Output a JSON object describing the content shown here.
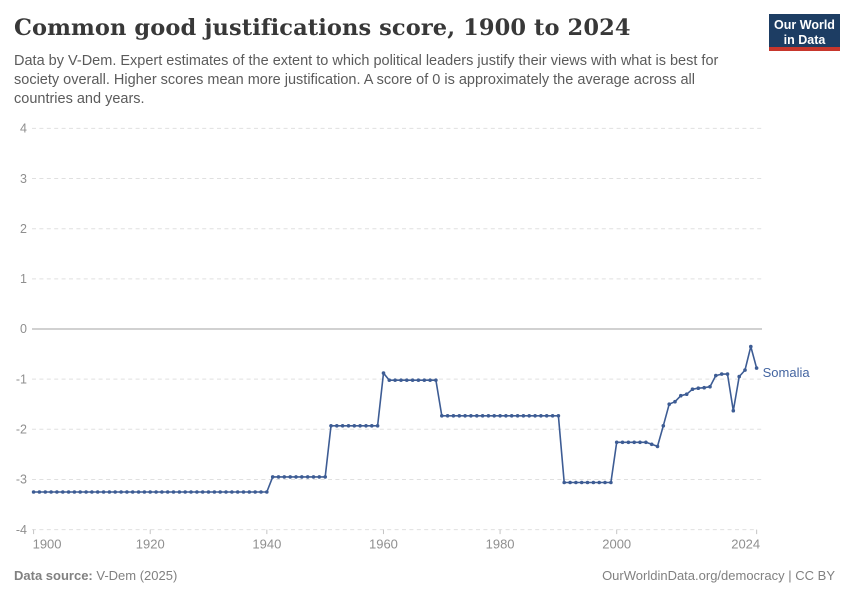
{
  "header": {
    "title": "Common good justifications score, 1900 to 2024",
    "subtitle_lines": [
      "Data by V-Dem. Expert estimates of the extent to which political leaders justify their views with what is best for",
      "society overall. Higher scores mean more justification. A score of 0 is approximately the average across all",
      "countries and years."
    ],
    "logo_lines": [
      "Our World",
      "in Data"
    ]
  },
  "footer": {
    "source_label": "Data source:",
    "source_value": "V-Dem (2025)",
    "url": "OurWorldinData.org/democracy",
    "divider": "|",
    "license": "CC BY"
  },
  "colors": {
    "series_line": "#3d5c94",
    "entity_label": "#4465a1",
    "logo_background": "#1d3d63",
    "logo_stripe": "#c7362c",
    "gridline": "#e0e0e0",
    "zero_line": "#a3a3a3",
    "axis_text": "#8f8f8f"
  },
  "chart_data": {
    "type": "line",
    "title": "Common good justifications score, 1900 to 2024",
    "xlabel": "",
    "ylabel": "",
    "xlim": [
      1900,
      2024
    ],
    "ylim": [
      -4,
      4
    ],
    "yticks": [
      4,
      3,
      2,
      1,
      0,
      -1,
      -2,
      -3,
      -4
    ],
    "xticks": [
      1900,
      1920,
      1940,
      1960,
      1980,
      2000,
      2024
    ],
    "grid": "horizontal dashed, solid line at 0",
    "legend": "end-of-line entity label",
    "entity_label": "Somalia",
    "series": [
      {
        "name": "Somalia",
        "points": [
          [
            1900,
            -3.25
          ],
          [
            1901,
            -3.25
          ],
          [
            1902,
            -3.25
          ],
          [
            1903,
            -3.25
          ],
          [
            1904,
            -3.25
          ],
          [
            1905,
            -3.25
          ],
          [
            1906,
            -3.25
          ],
          [
            1907,
            -3.25
          ],
          [
            1908,
            -3.25
          ],
          [
            1909,
            -3.25
          ],
          [
            1910,
            -3.25
          ],
          [
            1911,
            -3.25
          ],
          [
            1912,
            -3.25
          ],
          [
            1913,
            -3.25
          ],
          [
            1914,
            -3.25
          ],
          [
            1915,
            -3.25
          ],
          [
            1916,
            -3.25
          ],
          [
            1917,
            -3.25
          ],
          [
            1918,
            -3.25
          ],
          [
            1919,
            -3.25
          ],
          [
            1920,
            -3.25
          ],
          [
            1921,
            -3.25
          ],
          [
            1922,
            -3.25
          ],
          [
            1923,
            -3.25
          ],
          [
            1924,
            -3.25
          ],
          [
            1925,
            -3.25
          ],
          [
            1926,
            -3.25
          ],
          [
            1927,
            -3.25
          ],
          [
            1928,
            -3.25
          ],
          [
            1929,
            -3.25
          ],
          [
            1930,
            -3.25
          ],
          [
            1931,
            -3.25
          ],
          [
            1932,
            -3.25
          ],
          [
            1933,
            -3.25
          ],
          [
            1934,
            -3.25
          ],
          [
            1935,
            -3.25
          ],
          [
            1936,
            -3.25
          ],
          [
            1937,
            -3.25
          ],
          [
            1938,
            -3.25
          ],
          [
            1939,
            -3.25
          ],
          [
            1940,
            -3.25
          ],
          [
            1941,
            -2.95
          ],
          [
            1942,
            -2.95
          ],
          [
            1943,
            -2.95
          ],
          [
            1944,
            -2.95
          ],
          [
            1945,
            -2.95
          ],
          [
            1946,
            -2.95
          ],
          [
            1947,
            -2.95
          ],
          [
            1948,
            -2.95
          ],
          [
            1949,
            -2.95
          ],
          [
            1950,
            -2.95
          ],
          [
            1951,
            -1.93
          ],
          [
            1952,
            -1.93
          ],
          [
            1953,
            -1.93
          ],
          [
            1954,
            -1.93
          ],
          [
            1955,
            -1.93
          ],
          [
            1956,
            -1.93
          ],
          [
            1957,
            -1.93
          ],
          [
            1958,
            -1.93
          ],
          [
            1959,
            -1.93
          ],
          [
            1960,
            -0.88
          ],
          [
            1961,
            -1.02
          ],
          [
            1962,
            -1.02
          ],
          [
            1963,
            -1.02
          ],
          [
            1964,
            -1.02
          ],
          [
            1965,
            -1.02
          ],
          [
            1966,
            -1.02
          ],
          [
            1967,
            -1.02
          ],
          [
            1968,
            -1.02
          ],
          [
            1969,
            -1.02
          ],
          [
            1970,
            -1.73
          ],
          [
            1971,
            -1.73
          ],
          [
            1972,
            -1.73
          ],
          [
            1973,
            -1.73
          ],
          [
            1974,
            -1.73
          ],
          [
            1975,
            -1.73
          ],
          [
            1976,
            -1.73
          ],
          [
            1977,
            -1.73
          ],
          [
            1978,
            -1.73
          ],
          [
            1979,
            -1.73
          ],
          [
            1980,
            -1.73
          ],
          [
            1981,
            -1.73
          ],
          [
            1982,
            -1.73
          ],
          [
            1983,
            -1.73
          ],
          [
            1984,
            -1.73
          ],
          [
            1985,
            -1.73
          ],
          [
            1986,
            -1.73
          ],
          [
            1987,
            -1.73
          ],
          [
            1988,
            -1.73
          ],
          [
            1989,
            -1.73
          ],
          [
            1990,
            -1.73
          ],
          [
            1991,
            -3.06
          ],
          [
            1992,
            -3.06
          ],
          [
            1993,
            -3.06
          ],
          [
            1994,
            -3.06
          ],
          [
            1995,
            -3.06
          ],
          [
            1996,
            -3.06
          ],
          [
            1997,
            -3.06
          ],
          [
            1998,
            -3.06
          ],
          [
            1999,
            -3.06
          ],
          [
            2000,
            -2.26
          ],
          [
            2001,
            -2.26
          ],
          [
            2002,
            -2.26
          ],
          [
            2003,
            -2.26
          ],
          [
            2004,
            -2.26
          ],
          [
            2005,
            -2.26
          ],
          [
            2006,
            -2.3
          ],
          [
            2007,
            -2.34
          ],
          [
            2008,
            -1.93
          ],
          [
            2009,
            -1.5
          ],
          [
            2010,
            -1.45
          ],
          [
            2011,
            -1.33
          ],
          [
            2012,
            -1.3
          ],
          [
            2013,
            -1.2
          ],
          [
            2014,
            -1.18
          ],
          [
            2015,
            -1.17
          ],
          [
            2016,
            -1.15
          ],
          [
            2017,
            -0.93
          ],
          [
            2018,
            -0.9
          ],
          [
            2019,
            -0.9
          ],
          [
            2020,
            -1.63
          ],
          [
            2021,
            -0.95
          ],
          [
            2022,
            -0.82
          ],
          [
            2023,
            -0.35
          ],
          [
            2024,
            -0.78
          ]
        ]
      }
    ]
  }
}
